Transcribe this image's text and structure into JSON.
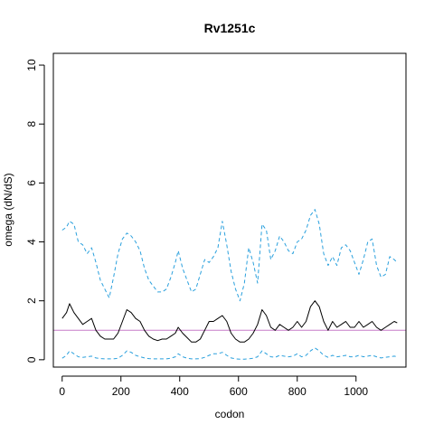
{
  "chart_data": {
    "type": "line",
    "title": "Rv1251c",
    "xlabel": "codon",
    "ylabel": "omega (dN/dS)",
    "xlim": [
      -30,
      1170
    ],
    "ylim": [
      -0.25,
      10.4
    ],
    "x_ticks": [
      0,
      200,
      400,
      600,
      800,
      1000
    ],
    "y_ticks": [
      0,
      2,
      4,
      6,
      8,
      10
    ],
    "reference_line": {
      "y": 1,
      "color": "#c77cc9"
    },
    "grid": false,
    "legend": "none",
    "series": [
      {
        "style": "dashed",
        "color": "#2aa0dd",
        "x": [
          0,
          15,
          25,
          40,
          55,
          70,
          85,
          100,
          115,
          130,
          145,
          160,
          175,
          190,
          205,
          220,
          235,
          250,
          265,
          280,
          295,
          310,
          325,
          340,
          355,
          370,
          385,
          395,
          410,
          425,
          440,
          455,
          470,
          485,
          500,
          515,
          530,
          545,
          560,
          575,
          590,
          605,
          620,
          635,
          650,
          665,
          680,
          695,
          710,
          725,
          740,
          755,
          770,
          785,
          800,
          815,
          830,
          845,
          860,
          875,
          890,
          905,
          920,
          935,
          950,
          965,
          980,
          995,
          1010,
          1025,
          1040,
          1055,
          1070,
          1085,
          1100,
          1115,
          1130,
          1140
        ],
        "values": [
          4.4,
          4.5,
          4.7,
          4.6,
          4.0,
          3.9,
          3.6,
          3.8,
          3.3,
          2.7,
          2.4,
          2.1,
          2.8,
          3.6,
          4.1,
          4.3,
          4.2,
          4.0,
          3.7,
          3.1,
          2.7,
          2.5,
          2.3,
          2.3,
          2.4,
          2.8,
          3.3,
          3.7,
          3.1,
          2.7,
          2.3,
          2.4,
          2.9,
          3.4,
          3.3,
          3.5,
          3.8,
          4.7,
          3.9,
          3.0,
          2.4,
          2.0,
          2.6,
          3.8,
          3.3,
          2.6,
          4.6,
          4.4,
          3.4,
          3.7,
          4.2,
          4.0,
          3.7,
          3.6,
          4.0,
          4.1,
          4.4,
          4.9,
          5.1,
          4.6,
          3.6,
          3.2,
          3.5,
          3.2,
          3.8,
          3.9,
          3.7,
          3.3,
          2.9,
          3.4,
          4.0,
          4.1,
          3.2,
          2.8,
          2.9,
          3.5,
          3.4,
          3.3
        ]
      },
      {
        "style": "solid",
        "color": "#000000",
        "x": [
          0,
          15,
          25,
          40,
          55,
          70,
          85,
          100,
          115,
          130,
          145,
          160,
          175,
          190,
          205,
          220,
          235,
          250,
          265,
          280,
          295,
          310,
          325,
          340,
          355,
          370,
          385,
          395,
          410,
          425,
          440,
          455,
          470,
          485,
          500,
          515,
          530,
          545,
          560,
          575,
          590,
          605,
          620,
          635,
          650,
          665,
          680,
          695,
          710,
          725,
          740,
          755,
          770,
          785,
          800,
          815,
          830,
          845,
          860,
          875,
          890,
          905,
          920,
          935,
          950,
          965,
          980,
          995,
          1010,
          1025,
          1040,
          1055,
          1070,
          1085,
          1100,
          1115,
          1130,
          1140
        ],
        "values": [
          1.4,
          1.6,
          1.9,
          1.6,
          1.4,
          1.2,
          1.3,
          1.4,
          1.0,
          0.8,
          0.7,
          0.7,
          0.7,
          0.9,
          1.3,
          1.7,
          1.6,
          1.4,
          1.3,
          1.0,
          0.8,
          0.7,
          0.65,
          0.7,
          0.7,
          0.8,
          0.9,
          1.1,
          0.9,
          0.75,
          0.6,
          0.6,
          0.7,
          1.0,
          1.3,
          1.3,
          1.4,
          1.5,
          1.3,
          0.9,
          0.7,
          0.6,
          0.6,
          0.7,
          0.9,
          1.2,
          1.7,
          1.5,
          1.1,
          1.0,
          1.2,
          1.1,
          1.0,
          1.1,
          1.3,
          1.1,
          1.3,
          1.8,
          2.0,
          1.8,
          1.3,
          1.0,
          1.3,
          1.1,
          1.2,
          1.3,
          1.1,
          1.1,
          1.3,
          1.1,
          1.2,
          1.3,
          1.1,
          1.0,
          1.1,
          1.2,
          1.3,
          1.25
        ]
      },
      {
        "style": "dashed",
        "color": "#2aa0dd",
        "x": [
          0,
          15,
          25,
          40,
          55,
          70,
          85,
          100,
          115,
          130,
          145,
          160,
          175,
          190,
          205,
          220,
          235,
          250,
          265,
          280,
          295,
          310,
          325,
          340,
          355,
          370,
          385,
          395,
          410,
          425,
          440,
          455,
          470,
          485,
          500,
          515,
          530,
          545,
          560,
          575,
          590,
          605,
          620,
          635,
          650,
          665,
          680,
          695,
          710,
          725,
          740,
          755,
          770,
          785,
          800,
          815,
          830,
          845,
          860,
          875,
          890,
          905,
          920,
          935,
          950,
          965,
          980,
          995,
          1010,
          1025,
          1040,
          1055,
          1070,
          1085,
          1100,
          1115,
          1130,
          1140
        ],
        "values": [
          0.05,
          0.15,
          0.3,
          0.2,
          0.1,
          0.08,
          0.1,
          0.12,
          0.06,
          0.04,
          0.03,
          0.03,
          0.03,
          0.05,
          0.15,
          0.3,
          0.25,
          0.15,
          0.1,
          0.06,
          0.04,
          0.03,
          0.03,
          0.03,
          0.03,
          0.05,
          0.1,
          0.2,
          0.1,
          0.05,
          0.03,
          0.03,
          0.04,
          0.08,
          0.15,
          0.2,
          0.2,
          0.25,
          0.15,
          0.06,
          0.03,
          0.02,
          0.02,
          0.03,
          0.05,
          0.1,
          0.3,
          0.2,
          0.1,
          0.08,
          0.15,
          0.12,
          0.1,
          0.12,
          0.2,
          0.1,
          0.15,
          0.3,
          0.4,
          0.3,
          0.15,
          0.08,
          0.15,
          0.1,
          0.12,
          0.15,
          0.1,
          0.1,
          0.15,
          0.1,
          0.12,
          0.15,
          0.1,
          0.06,
          0.08,
          0.1,
          0.12,
          0.1
        ]
      }
    ]
  }
}
